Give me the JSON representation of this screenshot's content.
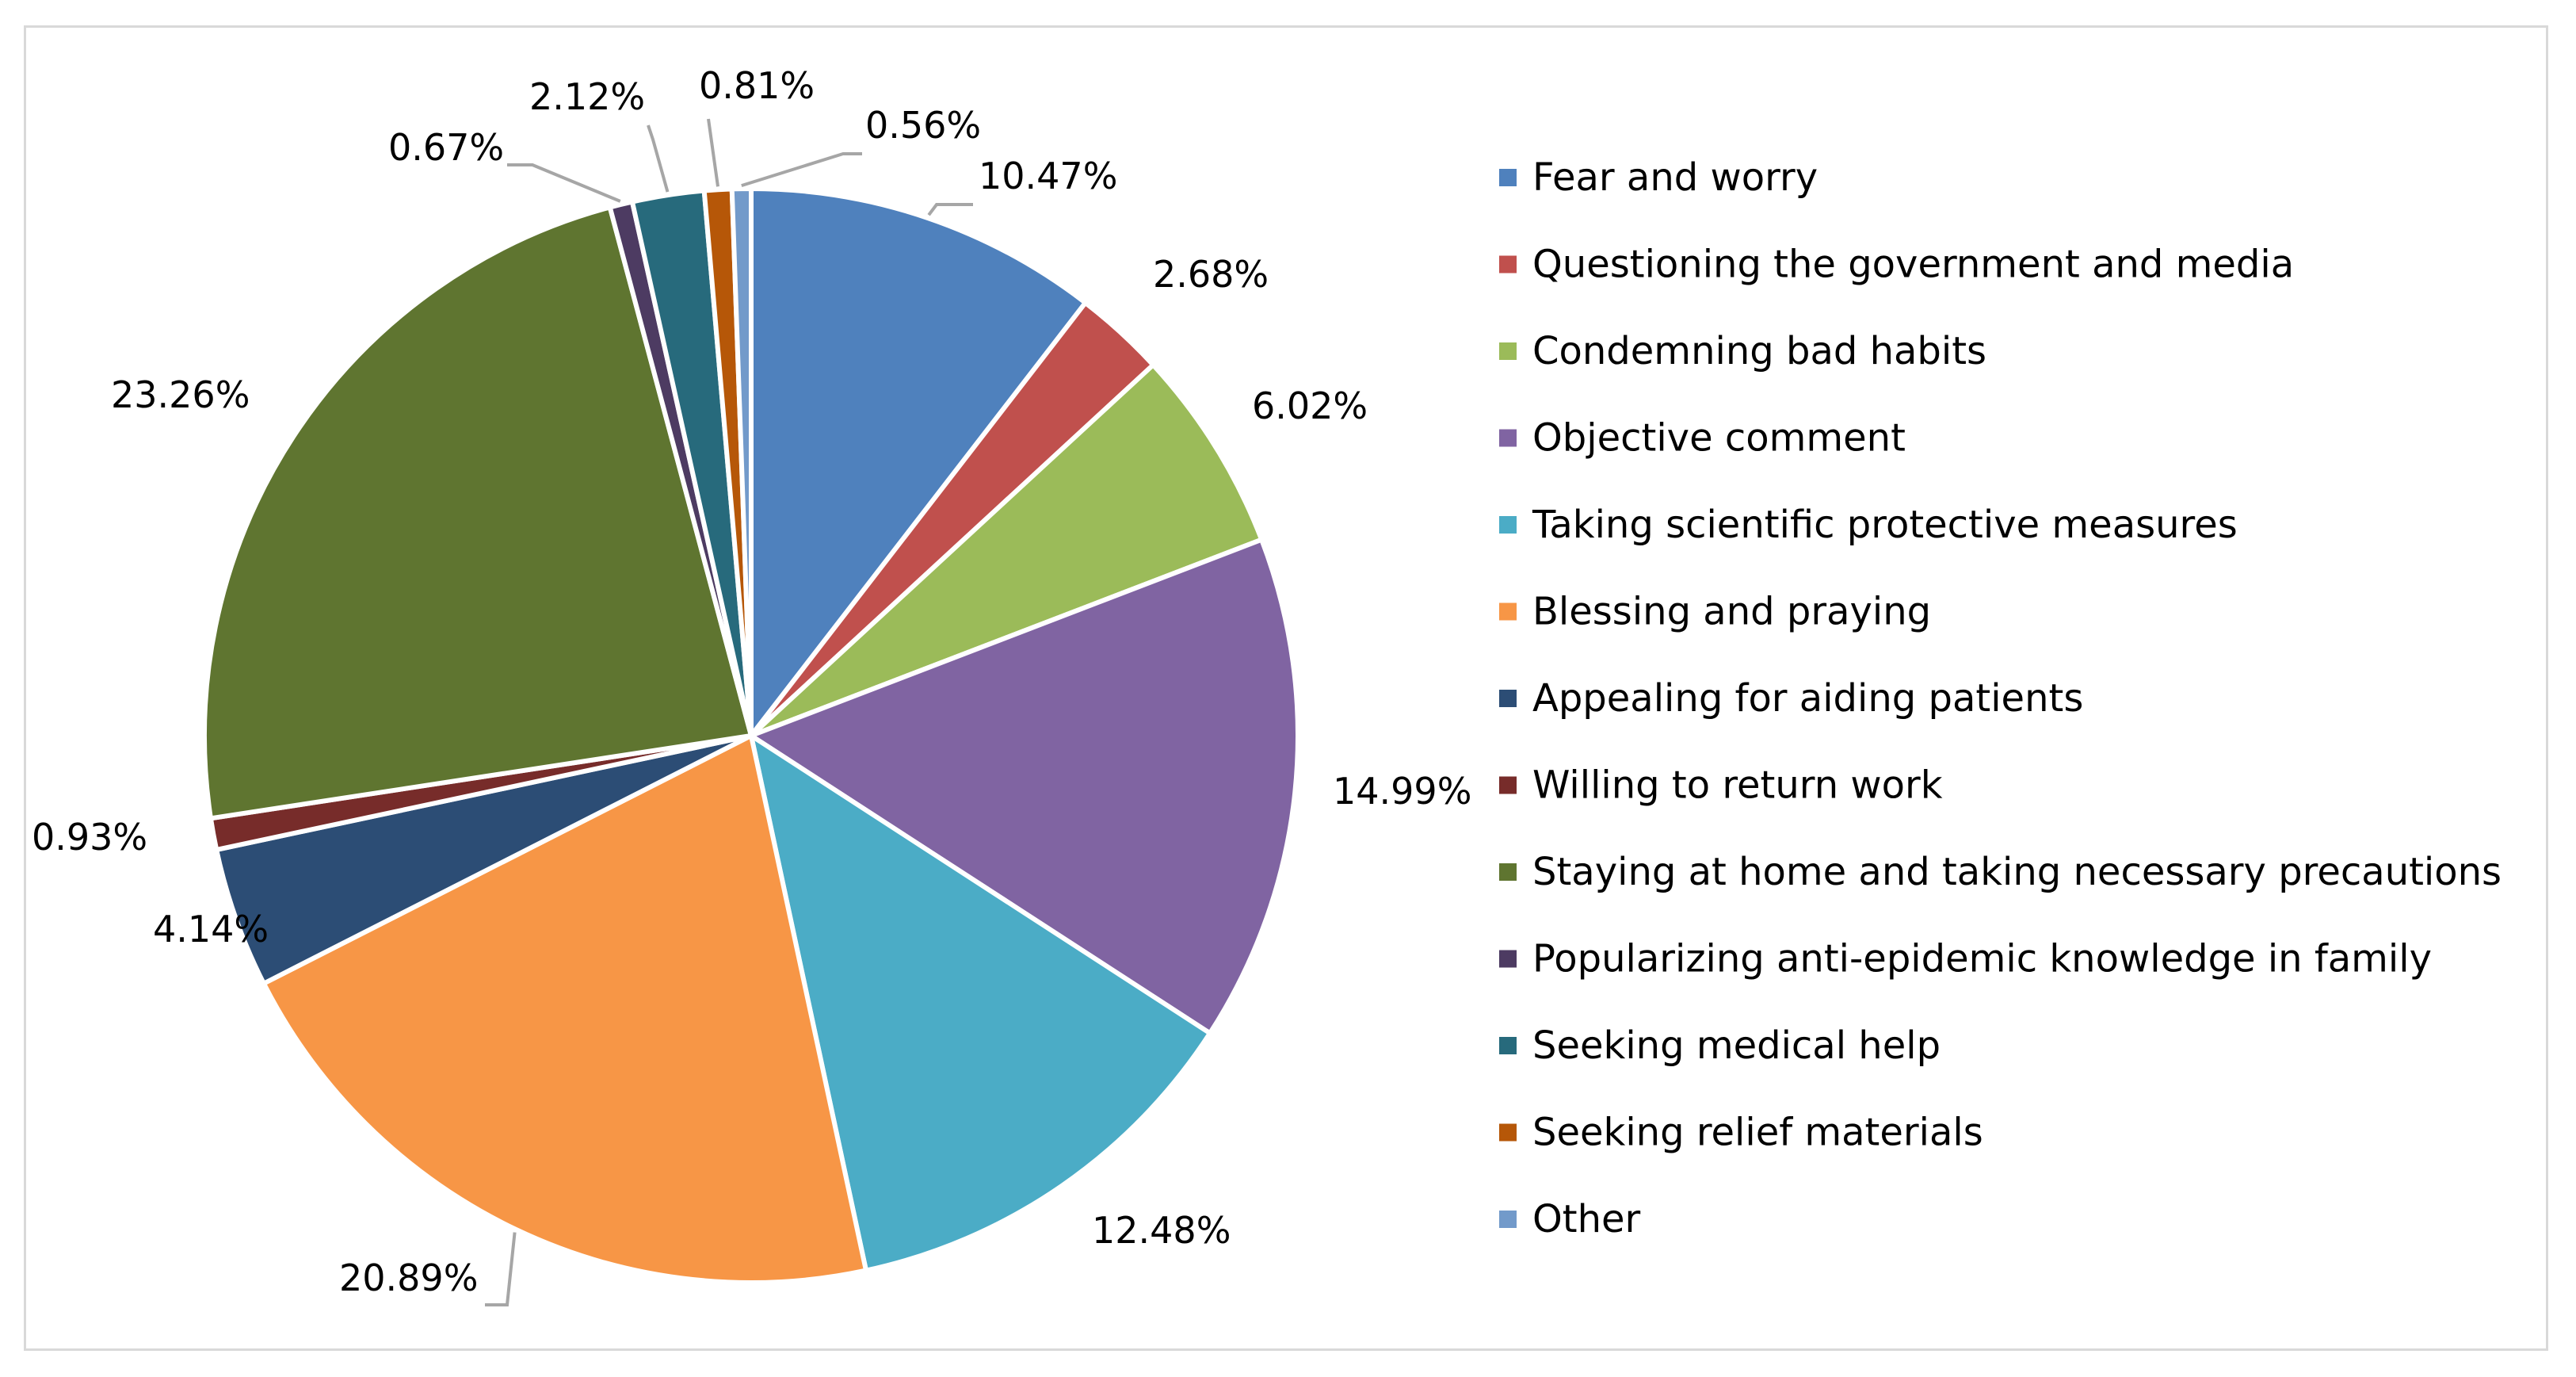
{
  "chart_data": {
    "type": "pie",
    "title": "",
    "legend_position": "right",
    "slices": [
      {
        "label": "Fear and worry",
        "value": 10.47,
        "display": "10.47%",
        "color": "#4F81BD"
      },
      {
        "label": "Questioning the government and media",
        "value": 2.68,
        "display": "2.68%",
        "color": "#C0504D"
      },
      {
        "label": "Condemning bad habits",
        "value": 6.02,
        "display": "6.02%",
        "color": "#9BBB59"
      },
      {
        "label": "Objective comment",
        "value": 14.99,
        "display": "14.99%",
        "color": "#8064A2"
      },
      {
        "label": "Taking scientific protective measures",
        "value": 12.48,
        "display": "12.48%",
        "color": "#4BACC6"
      },
      {
        "label": "Blessing and praying",
        "value": 20.89,
        "display": "20.89%",
        "color": "#F79646"
      },
      {
        "label": "Appealing for aiding patients",
        "value": 4.14,
        "display": "4.14%",
        "color": "#2C4D75"
      },
      {
        "label": "Willing to return work",
        "value": 0.93,
        "display": "0.93%",
        "color": "#772C2A"
      },
      {
        "label": "Staying at home and taking necessary precautions",
        "value": 23.26,
        "display": "23.26%",
        "color": "#5F7530"
      },
      {
        "label": "Popularizing anti-epidemic knowledge in family",
        "value": 0.67,
        "display": "0.67%",
        "color": "#4D3B62"
      },
      {
        "label": "Seeking medical help",
        "value": 2.12,
        "display": "2.12%",
        "color": "#276A7C"
      },
      {
        "label": "Seeking relief materials",
        "value": 0.81,
        "display": "0.81%",
        "color": "#B65708"
      },
      {
        "label": "Other",
        "value": 0.56,
        "display": "0.56%",
        "color": "#729ACA"
      }
    ]
  }
}
